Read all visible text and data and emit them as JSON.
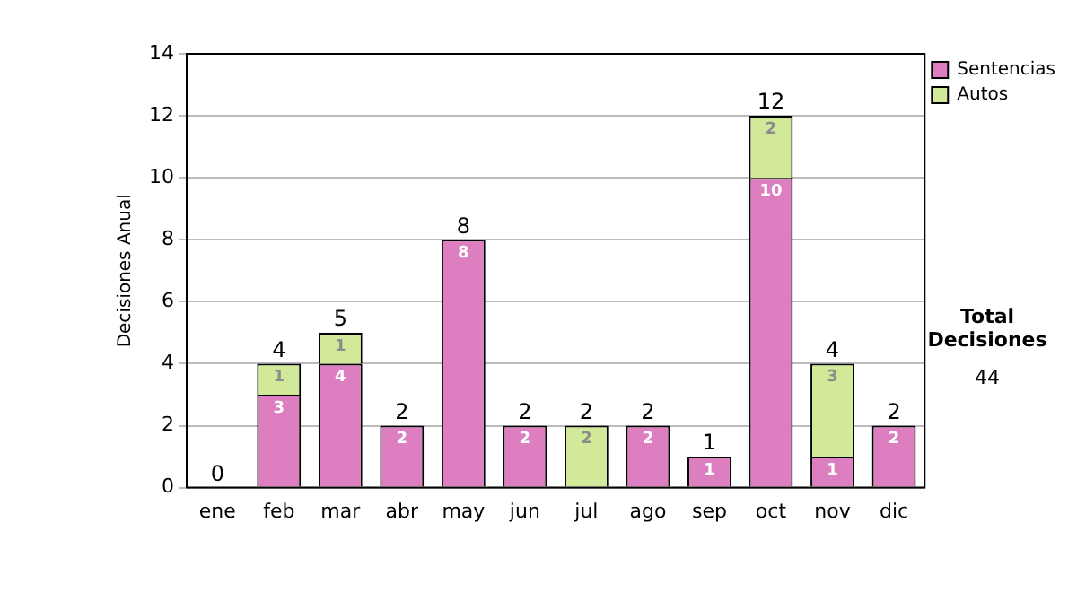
{
  "chart_data": {
    "type": "bar",
    "stacked": true,
    "ylabel": "Decisiones Anual",
    "categories": [
      "ene",
      "feb",
      "mar",
      "abr",
      "may",
      "jun",
      "jul",
      "ago",
      "sep",
      "oct",
      "nov",
      "dic"
    ],
    "series": [
      {
        "name": "Sentencias",
        "color": "#dd7ec0",
        "values": [
          0,
          3,
          4,
          2,
          8,
          2,
          0,
          2,
          1,
          10,
          1,
          2
        ],
        "value_labels": [
          null,
          "3",
          "4",
          "2",
          "8",
          "2",
          null,
          "2",
          "1",
          "10",
          "1",
          "2"
        ]
      },
      {
        "name": "Autos",
        "color": "#d3e99a",
        "values": [
          0,
          1,
          1,
          0,
          0,
          0,
          2,
          0,
          0,
          2,
          3,
          0
        ],
        "value_labels": [
          null,
          "1",
          "1",
          null,
          null,
          null,
          "2",
          null,
          null,
          "2",
          "3",
          null
        ]
      }
    ],
    "totals": [
      "0",
      "4",
      "5",
      "2",
      "8",
      "2",
      "2",
      "2",
      "1",
      "12",
      "4",
      "2"
    ],
    "ylim": [
      0,
      14
    ],
    "yticks": [
      0,
      2,
      4,
      6,
      8,
      10,
      12,
      14
    ],
    "grid": "y",
    "legend": "right",
    "annotations": [
      "Total Decisiones",
      "44"
    ]
  }
}
